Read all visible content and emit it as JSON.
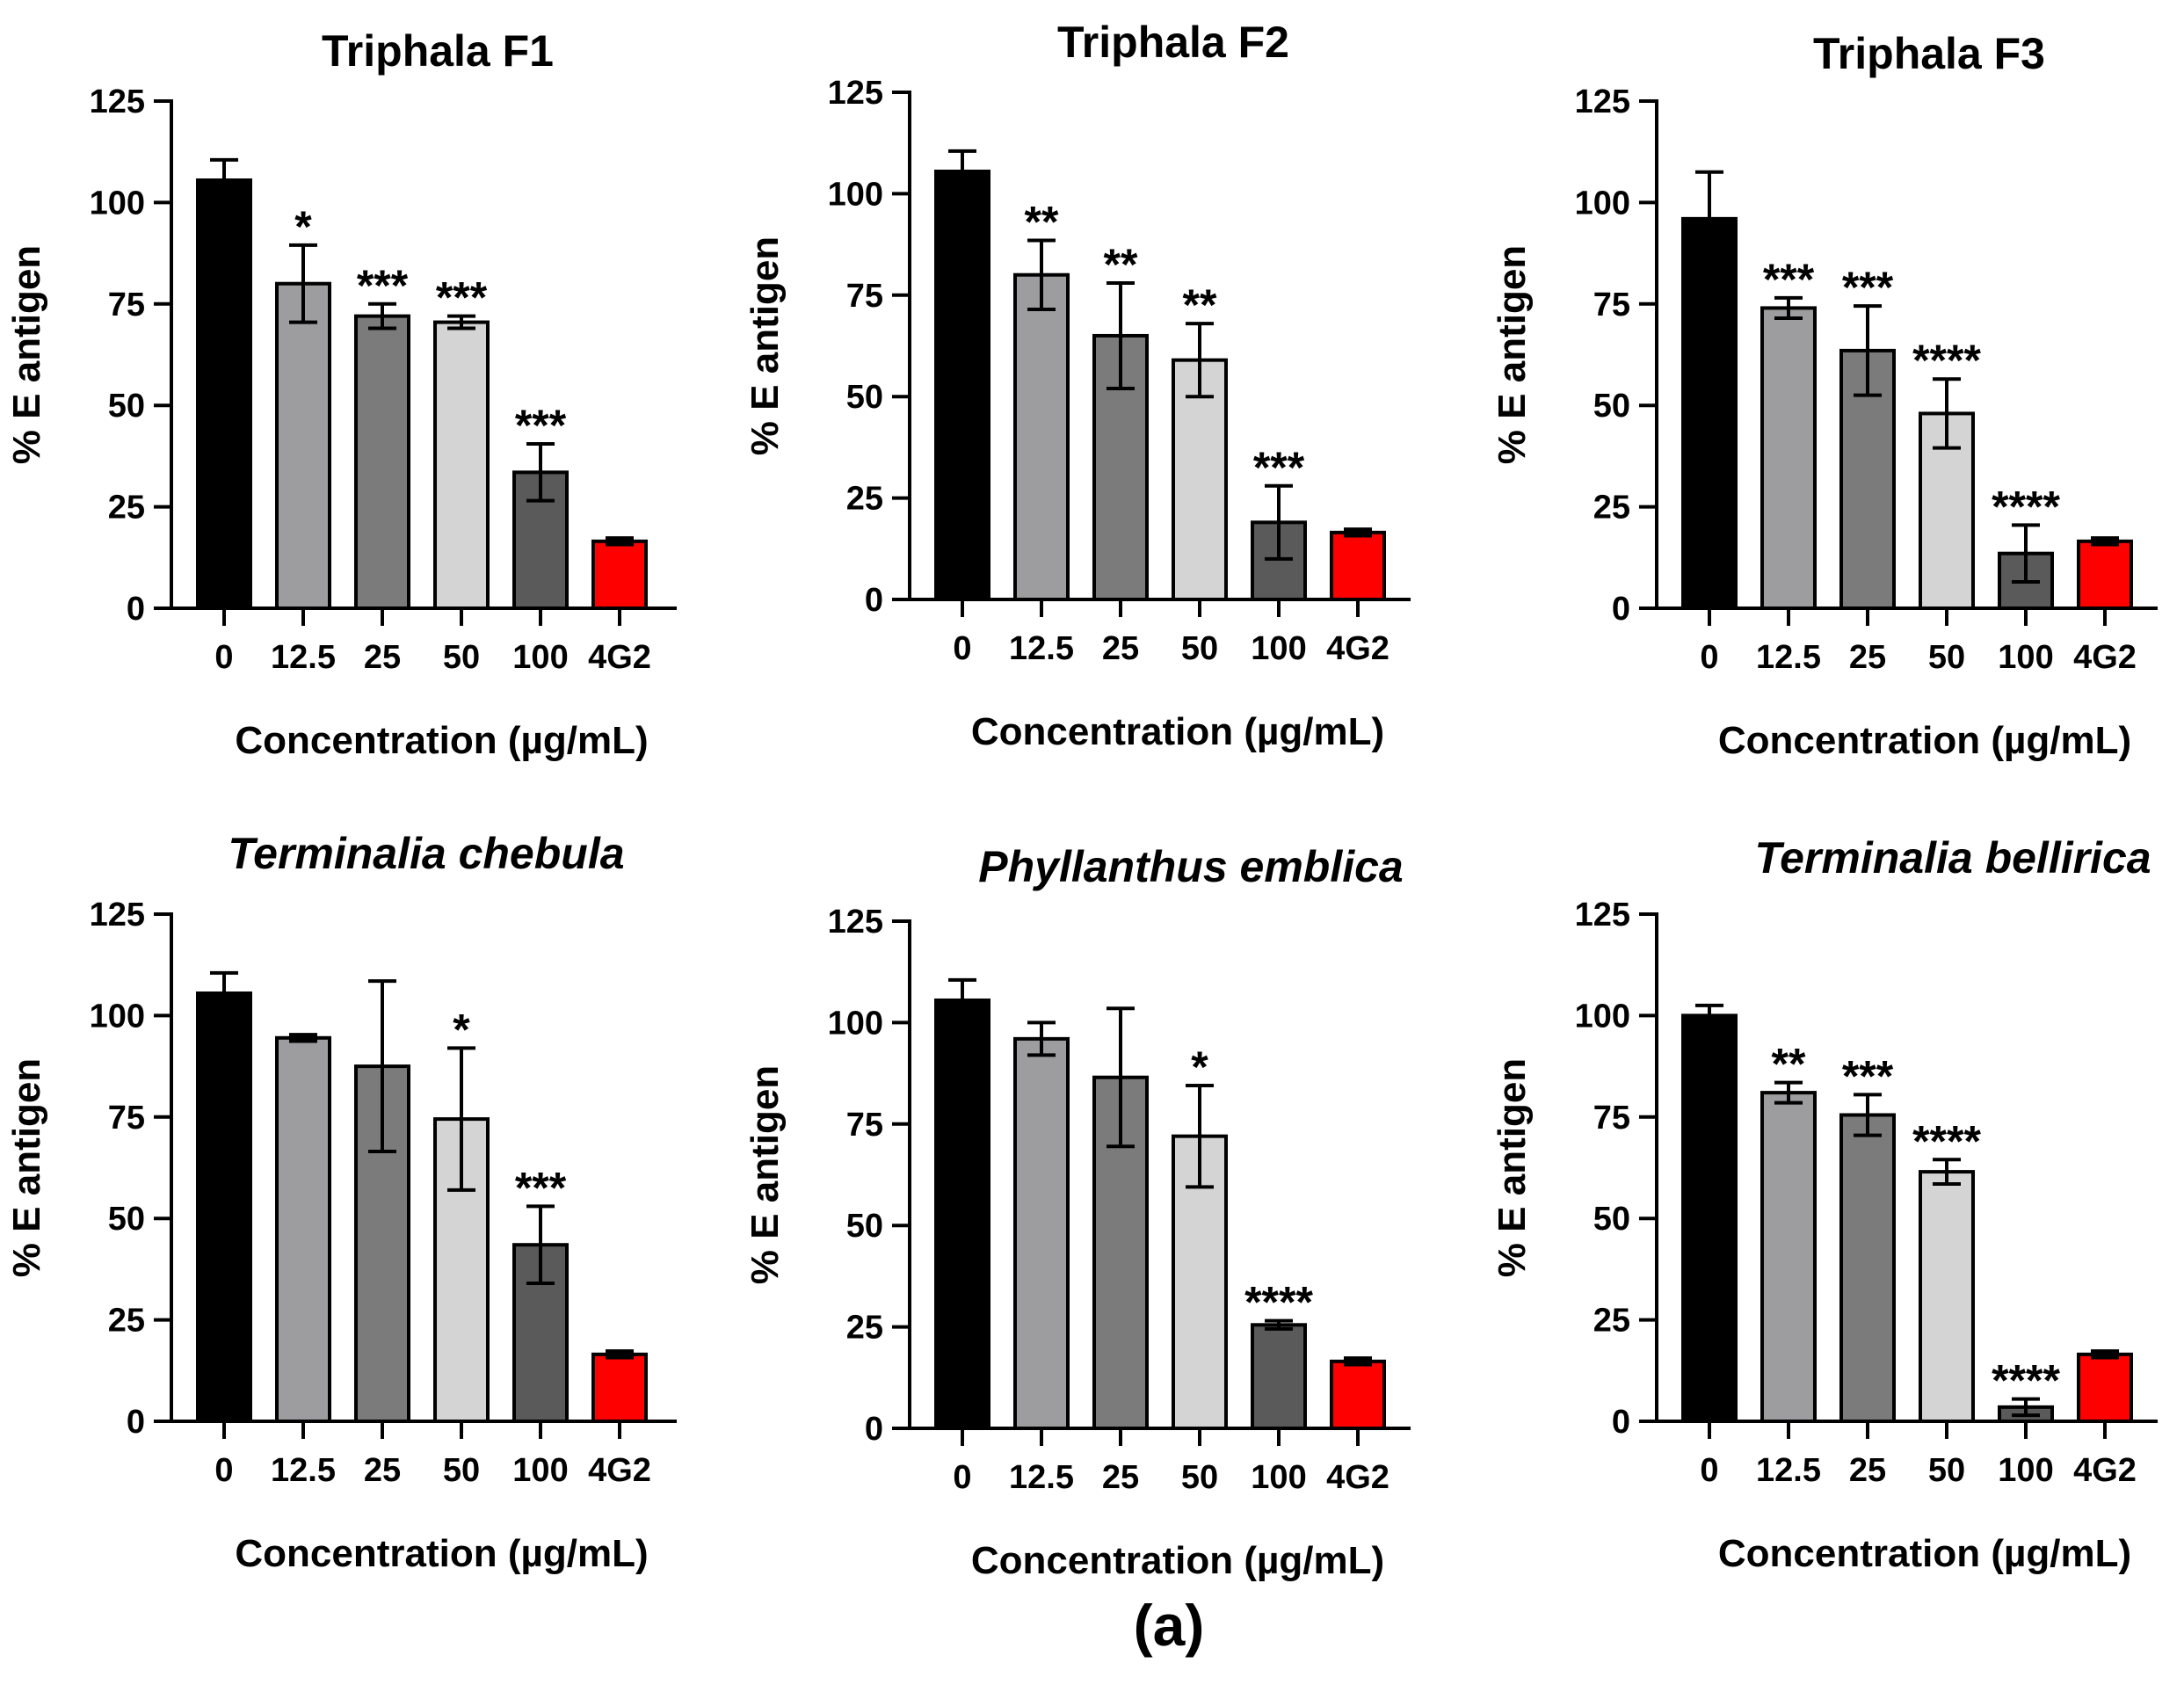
{
  "caption": "(a)",
  "chart_data": [
    {
      "type": "bar",
      "title": "Triphala  F1",
      "title_italic": false,
      "xlabel": "Concentration (µg/mL)",
      "ylabel": "% E antigen",
      "categories": [
        "0",
        "12.5",
        "25",
        "50",
        "100",
        "4G2"
      ],
      "values": [
        105.5,
        80,
        72,
        70.5,
        33.5,
        16.5
      ],
      "errors": [
        5,
        9.5,
        3,
        1.5,
        7,
        0.8
      ],
      "significance": [
        "",
        "*",
        "***",
        "***",
        "***",
        ""
      ],
      "ylim": [
        0,
        125
      ],
      "yticks": [
        0,
        25,
        50,
        75,
        100,
        125
      ],
      "bar_colors": [
        "#000000",
        "#9d9d9f",
        "#7b7b7b",
        "#d4d4d4",
        "#5a5a5a",
        "#ff0000"
      ]
    },
    {
      "type": "bar",
      "title": "Triphala  F2",
      "title_italic": false,
      "xlabel": "Concentration (µg/mL)",
      "ylabel": "% E antigen",
      "categories": [
        "0",
        "12.5",
        "25",
        "50",
        "100",
        "4G2"
      ],
      "values": [
        105.5,
        80,
        65,
        59,
        19,
        16.5
      ],
      "errors": [
        5,
        8.5,
        13,
        9,
        9,
        0.8
      ],
      "significance": [
        "",
        "**",
        "**",
        "**",
        "***",
        ""
      ],
      "ylim": [
        0,
        125
      ],
      "yticks": [
        0,
        25,
        50,
        75,
        100,
        125
      ],
      "bar_colors": [
        "#000000",
        "#9d9d9f",
        "#7b7b7b",
        "#d4d4d4",
        "#5a5a5a",
        "#ff0000"
      ]
    },
    {
      "type": "bar",
      "title": "Triphala  F3",
      "title_italic": false,
      "xlabel": "Concentration (µg/mL)",
      "ylabel": "% E antigen",
      "categories": [
        "0",
        "12.5",
        "25",
        "50",
        "100",
        "4G2"
      ],
      "values": [
        96,
        74,
        63.5,
        48,
        13.5,
        16.5
      ],
      "errors": [
        11.5,
        2.5,
        11,
        8.5,
        7,
        0.8
      ],
      "significance": [
        "",
        "***",
        "***",
        "****",
        "****",
        ""
      ],
      "ylim": [
        0,
        125
      ],
      "yticks": [
        0,
        25,
        50,
        75,
        100,
        125
      ],
      "bar_colors": [
        "#000000",
        "#9d9d9f",
        "#7b7b7b",
        "#d4d4d4",
        "#5a5a5a",
        "#ff0000"
      ]
    },
    {
      "type": "bar",
      "title": "Terminalia chebula",
      "title_italic": true,
      "xlabel": "Concentration (µg/mL)",
      "ylabel": "% E antigen",
      "categories": [
        "0",
        "12.5",
        "25",
        "50",
        "100",
        "4G2"
      ],
      "values": [
        105.5,
        94.5,
        87.5,
        74.5,
        43.5,
        16.5
      ],
      "errors": [
        5,
        0.8,
        21,
        17.5,
        9.5,
        0.8
      ],
      "significance": [
        "",
        "",
        "",
        "*",
        "***",
        ""
      ],
      "ylim": [
        0,
        125
      ],
      "yticks": [
        0,
        25,
        50,
        75,
        100,
        125
      ],
      "bar_colors": [
        "#000000",
        "#9d9d9f",
        "#7b7b7b",
        "#d4d4d4",
        "#5a5a5a",
        "#ff0000"
      ]
    },
    {
      "type": "bar",
      "title": "Phyllanthus emblica",
      "title_italic": true,
      "xlabel": "Concentration (µg/mL)",
      "ylabel": "% E antigen",
      "categories": [
        "0",
        "12.5",
        "25",
        "50",
        "100",
        "4G2"
      ],
      "values": [
        105.5,
        96,
        86.5,
        72,
        25.5,
        16.5
      ],
      "errors": [
        5,
        4,
        17,
        12.5,
        1,
        0.8
      ],
      "significance": [
        "",
        "",
        "",
        "*",
        "****",
        ""
      ],
      "ylim": [
        0,
        125
      ],
      "yticks": [
        0,
        25,
        50,
        75,
        100,
        125
      ],
      "bar_colors": [
        "#000000",
        "#9d9d9f",
        "#7b7b7b",
        "#d4d4d4",
        "#5a5a5a",
        "#ff0000"
      ]
    },
    {
      "type": "bar",
      "title": "Terminalia bellirica",
      "title_italic": true,
      "xlabel": "Concentration (µg/mL)",
      "ylabel": "% E antigen",
      "categories": [
        "0",
        "12.5",
        "25",
        "50",
        "100",
        "4G2"
      ],
      "values": [
        100,
        81,
        75.5,
        61.5,
        3.5,
        16.5
      ],
      "errors": [
        2.5,
        2.5,
        5,
        3,
        2,
        0.8
      ],
      "significance": [
        "",
        "**",
        "***",
        "****",
        "****",
        ""
      ],
      "ylim": [
        0,
        125
      ],
      "yticks": [
        0,
        25,
        50,
        75,
        100,
        125
      ],
      "bar_colors": [
        "#000000",
        "#9d9d9f",
        "#7b7b7b",
        "#d4d4d4",
        "#5a5a5a",
        "#ff0000"
      ]
    }
  ]
}
